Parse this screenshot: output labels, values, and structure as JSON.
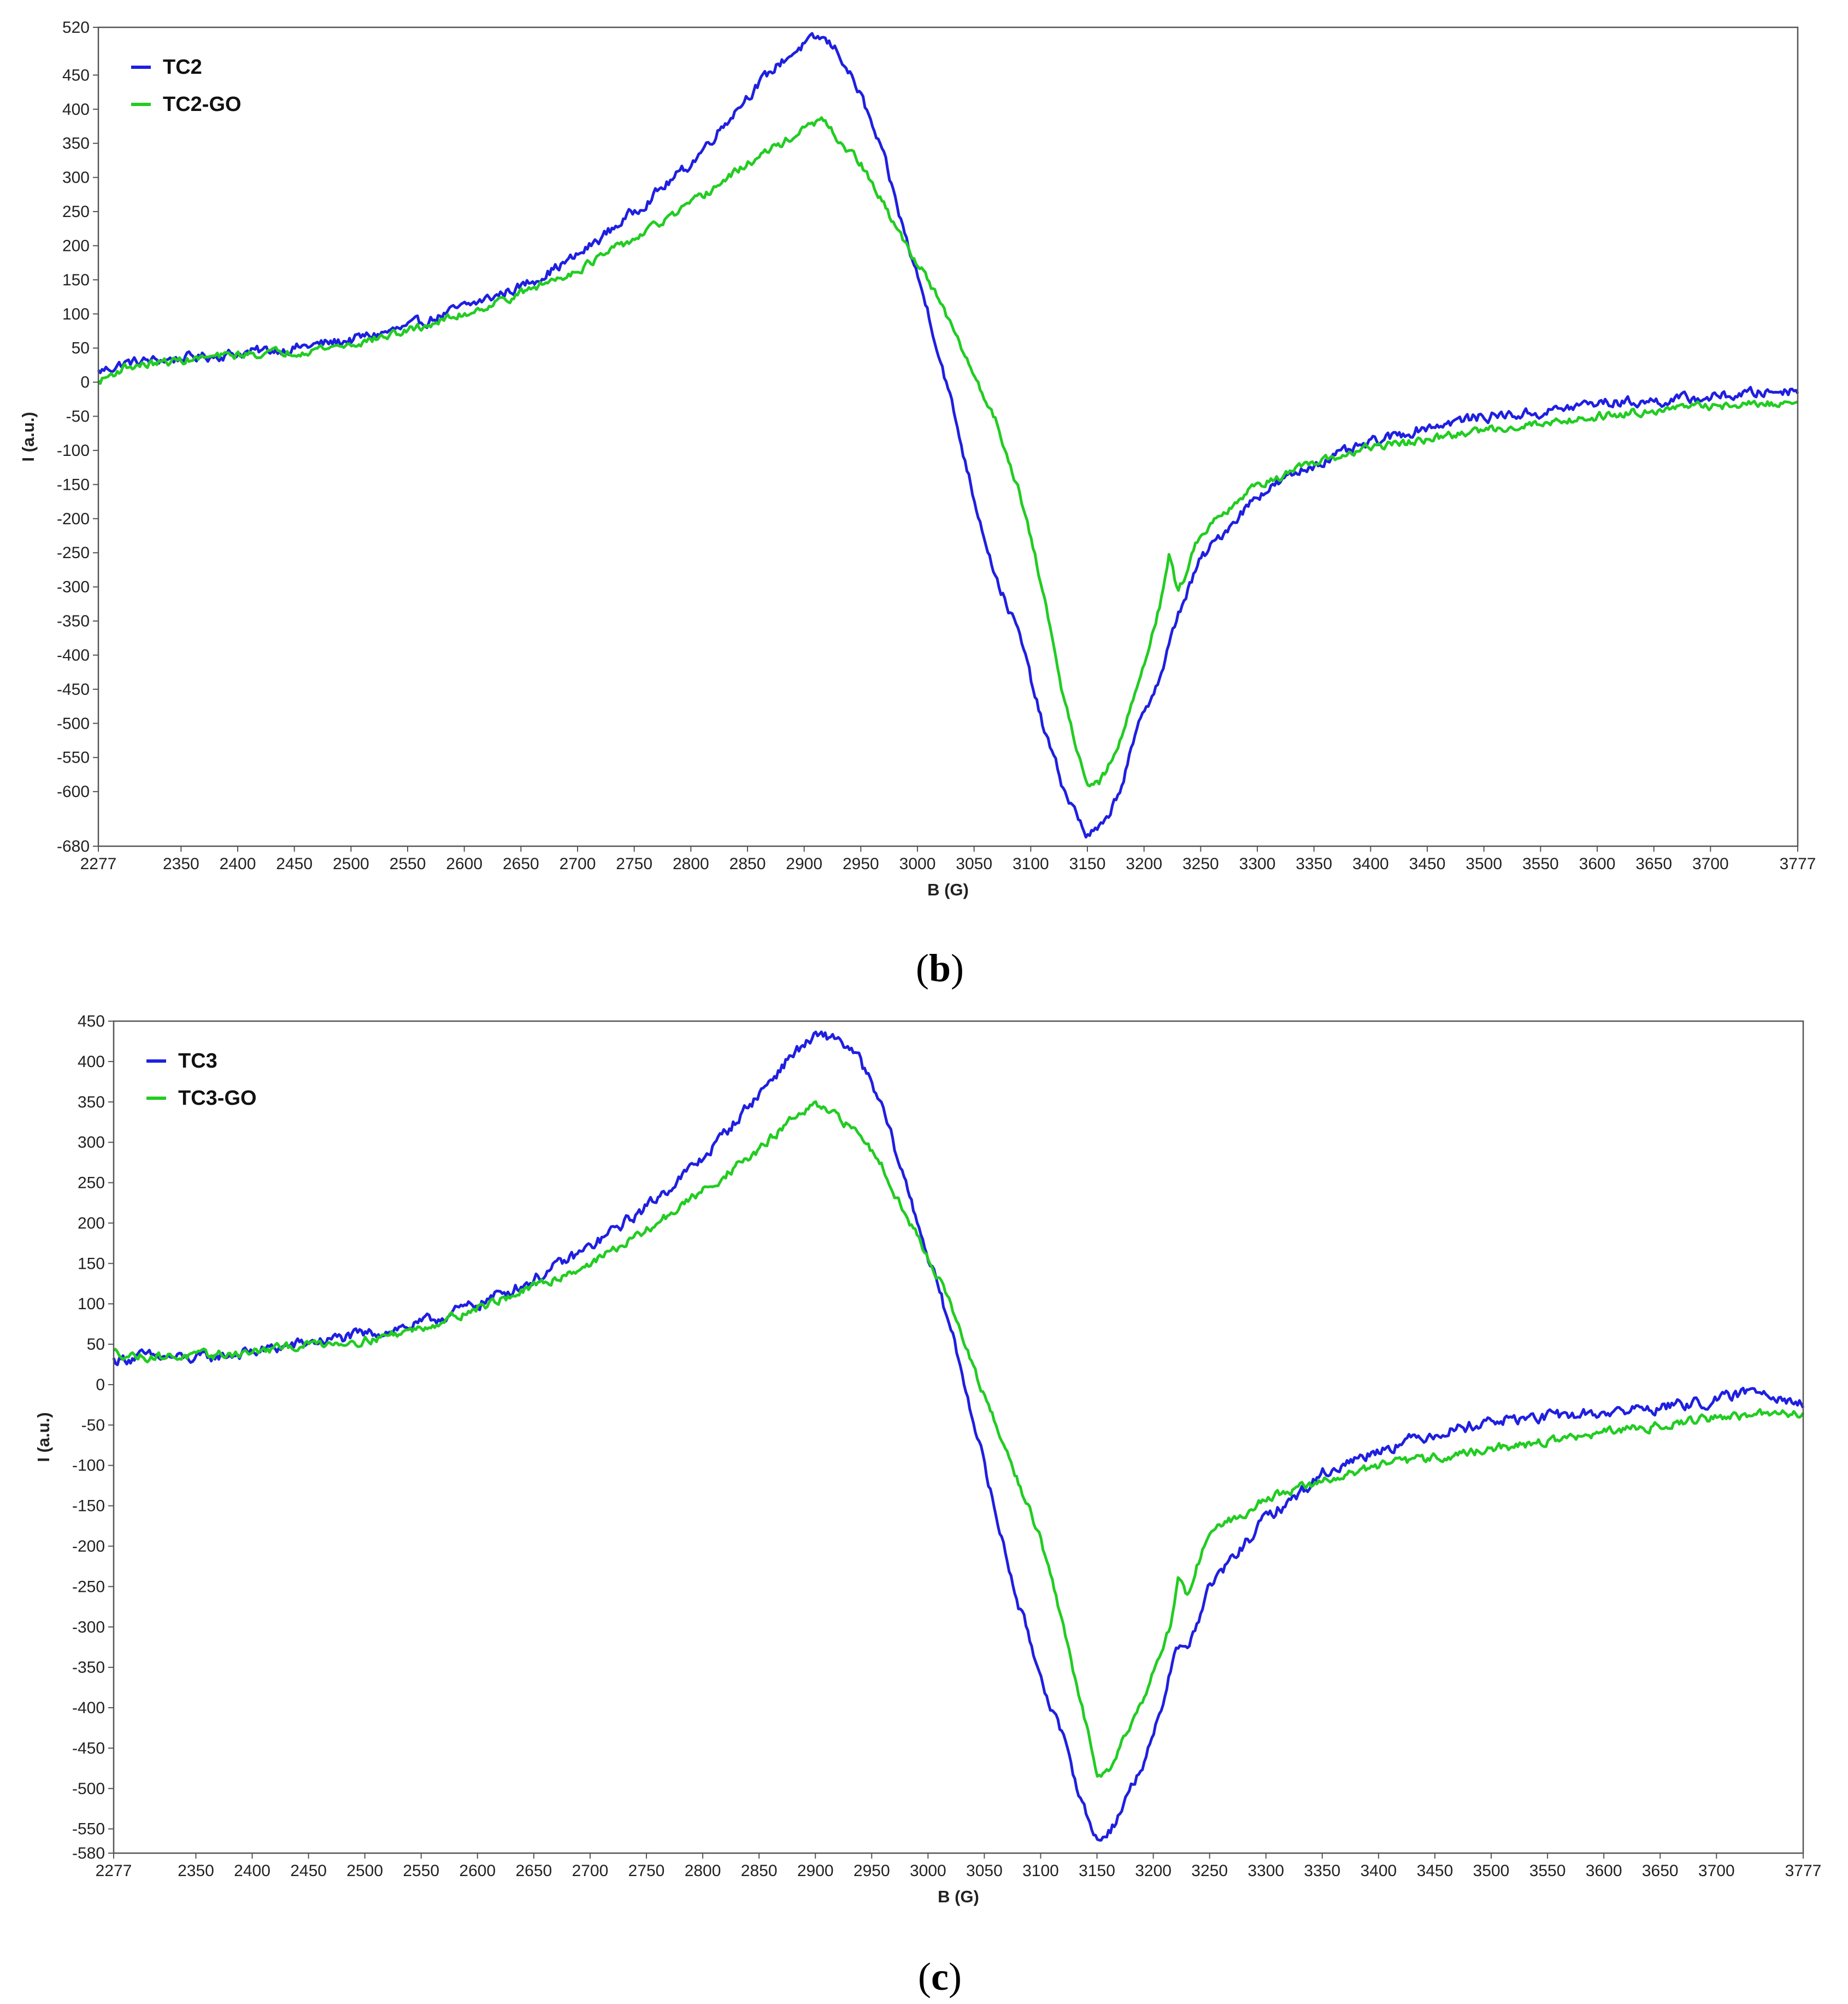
{
  "colors": {
    "tc": "#1f1fe0",
    "tc_go": "#22cc22",
    "frame": "#555555"
  },
  "chart_data": [
    {
      "type": "line",
      "caption_letter": "b",
      "xlabel": "B (G)",
      "ylabel": "I (a.u.)",
      "xlim": [
        2277,
        3777
      ],
      "ylim": [
        -680,
        520
      ],
      "xticks": [
        2277,
        2350,
        2400,
        2450,
        2500,
        2550,
        2600,
        2650,
        2700,
        2750,
        2800,
        2850,
        2900,
        2950,
        3000,
        3050,
        3100,
        3150,
        3200,
        3250,
        3300,
        3350,
        3400,
        3450,
        3500,
        3550,
        3600,
        3650,
        3700,
        3777
      ],
      "yticks": [
        520,
        450,
        400,
        350,
        300,
        250,
        200,
        150,
        100,
        50,
        0,
        -50,
        -100,
        -150,
        -200,
        -250,
        -300,
        -350,
        -400,
        -450,
        -500,
        -550,
        -600,
        -680
      ],
      "legend_position": "top-left",
      "series": [
        {
          "name": "TC2",
          "color_key": "tc",
          "noise": 14,
          "points": [
            [
              2277,
              15
            ],
            [
              2300,
              28
            ],
            [
              2350,
              35
            ],
            [
              2400,
              42
            ],
            [
              2450,
              50
            ],
            [
              2500,
              62
            ],
            [
              2550,
              80
            ],
            [
              2600,
              110
            ],
            [
              2650,
              140
            ],
            [
              2700,
              185
            ],
            [
              2750,
              250
            ],
            [
              2800,
              320
            ],
            [
              2850,
              420
            ],
            [
              2880,
              470
            ],
            [
              2900,
              495
            ],
            [
              2915,
              505
            ],
            [
              2930,
              485
            ],
            [
              2950,
              420
            ],
            [
              2970,
              330
            ],
            [
              2990,
              210
            ],
            [
              3010,
              100
            ],
            [
              3030,
              -30
            ],
            [
              3050,
              -170
            ],
            [
              3070,
              -290
            ],
            [
              3090,
              -370
            ],
            [
              3110,
              -500
            ],
            [
              3130,
              -600
            ],
            [
              3150,
              -665
            ],
            [
              3165,
              -650
            ],
            [
              3180,
              -590
            ],
            [
              3200,
              -480
            ],
            [
              3215,
              -430
            ],
            [
              3230,
              -340
            ],
            [
              3250,
              -260
            ],
            [
              3270,
              -220
            ],
            [
              3300,
              -165
            ],
            [
              3350,
              -120
            ],
            [
              3400,
              -90
            ],
            [
              3450,
              -65
            ],
            [
              3500,
              -50
            ],
            [
              3550,
              -45
            ],
            [
              3600,
              -30
            ],
            [
              3650,
              -28
            ],
            [
              3700,
              -22
            ],
            [
              3777,
              -10
            ]
          ]
        },
        {
          "name": "TC2-GO",
          "color_key": "tc_go",
          "noise": 11,
          "points": [
            [
              2277,
              0
            ],
            [
              2300,
              22
            ],
            [
              2350,
              32
            ],
            [
              2400,
              40
            ],
            [
              2450,
              45
            ],
            [
              2500,
              55
            ],
            [
              2550,
              75
            ],
            [
              2600,
              100
            ],
            [
              2650,
              130
            ],
            [
              2700,
              165
            ],
            [
              2750,
              210
            ],
            [
              2800,
              260
            ],
            [
              2850,
              320
            ],
            [
              2880,
              350
            ],
            [
              2900,
              370
            ],
            [
              2915,
              385
            ],
            [
              2930,
              355
            ],
            [
              2950,
              320
            ],
            [
              2970,
              260
            ],
            [
              2990,
              200
            ],
            [
              3010,
              150
            ],
            [
              3030,
              80
            ],
            [
              3050,
              10
            ],
            [
              3070,
              -60
            ],
            [
              3090,
              -160
            ],
            [
              3110,
              -300
            ],
            [
              3130,
              -470
            ],
            [
              3150,
              -590
            ],
            [
              3160,
              -590
            ],
            [
              3175,
              -545
            ],
            [
              3190,
              -470
            ],
            [
              3205,
              -380
            ],
            [
              3215,
              -320
            ],
            [
              3222,
              -255
            ],
            [
              3230,
              -310
            ],
            [
              3250,
              -220
            ],
            [
              3270,
              -190
            ],
            [
              3300,
              -150
            ],
            [
              3350,
              -120
            ],
            [
              3400,
              -95
            ],
            [
              3450,
              -85
            ],
            [
              3500,
              -70
            ],
            [
              3550,
              -60
            ],
            [
              3600,
              -50
            ],
            [
              3650,
              -40
            ],
            [
              3700,
              -35
            ],
            [
              3777,
              -30
            ]
          ]
        }
      ]
    },
    {
      "type": "line",
      "caption_letter": "c",
      "xlabel": "B (G)",
      "ylabel": "I (a.u.)",
      "xlim": [
        2277,
        3777
      ],
      "ylim": [
        -580,
        450
      ],
      "xticks": [
        2277,
        2350,
        2400,
        2450,
        2500,
        2550,
        2600,
        2650,
        2700,
        2750,
        2800,
        2850,
        2900,
        2950,
        3000,
        3050,
        3100,
        3150,
        3200,
        3250,
        3300,
        3350,
        3400,
        3450,
        3500,
        3550,
        3600,
        3650,
        3700,
        3777
      ],
      "yticks": [
        450,
        400,
        350,
        300,
        250,
        200,
        150,
        100,
        50,
        0,
        -50,
        -100,
        -150,
        -200,
        -250,
        -300,
        -350,
        -400,
        -450,
        -500,
        -550,
        -580
      ],
      "legend_position": "top-left",
      "series": [
        {
          "name": "TC3",
          "color_key": "tc",
          "noise": 13,
          "points": [
            [
              2277,
              30
            ],
            [
              2300,
              35
            ],
            [
              2350,
              32
            ],
            [
              2400,
              40
            ],
            [
              2450,
              52
            ],
            [
              2500,
              62
            ],
            [
              2550,
              75
            ],
            [
              2600,
              100
            ],
            [
              2650,
              130
            ],
            [
              2700,
              170
            ],
            [
              2750,
              220
            ],
            [
              2800,
              280
            ],
            [
              2850,
              360
            ],
            [
              2880,
              410
            ],
            [
              2900,
              430
            ],
            [
              2920,
              430
            ],
            [
              2940,
              400
            ],
            [
              2960,
              340
            ],
            [
              2980,
              250
            ],
            [
              3000,
              160
            ],
            [
              3020,
              70
            ],
            [
              3040,
              -40
            ],
            [
              3060,
              -160
            ],
            [
              3080,
              -270
            ],
            [
              3100,
              -360
            ],
            [
              3120,
              -440
            ],
            [
              3140,
              -530
            ],
            [
              3150,
              -565
            ],
            [
              3165,
              -545
            ],
            [
              3180,
              -500
            ],
            [
              3200,
              -440
            ],
            [
              3210,
              -385
            ],
            [
              3220,
              -320
            ],
            [
              3230,
              -330
            ],
            [
              3250,
              -250
            ],
            [
              3280,
              -200
            ],
            [
              3300,
              -165
            ],
            [
              3330,
              -135
            ],
            [
              3350,
              -110
            ],
            [
              3400,
              -80
            ],
            [
              3450,
              -60
            ],
            [
              3500,
              -45
            ],
            [
              3550,
              -40
            ],
            [
              3600,
              -35
            ],
            [
              3650,
              -28
            ],
            [
              3700,
              -20
            ],
            [
              3740,
              -5
            ],
            [
              3777,
              -25
            ]
          ]
        },
        {
          "name": "TC3-GO",
          "color_key": "tc_go",
          "noise": 10,
          "points": [
            [
              2277,
              40
            ],
            [
              2300,
              35
            ],
            [
              2350,
              35
            ],
            [
              2400,
              40
            ],
            [
              2450,
              50
            ],
            [
              2500,
              55
            ],
            [
              2550,
              70
            ],
            [
              2600,
              95
            ],
            [
              2650,
              120
            ],
            [
              2700,
              150
            ],
            [
              2750,
              190
            ],
            [
              2800,
              240
            ],
            [
              2850,
              290
            ],
            [
              2880,
              330
            ],
            [
              2900,
              345
            ],
            [
              2920,
              330
            ],
            [
              2940,
              310
            ],
            [
              2960,
              270
            ],
            [
              2980,
              210
            ],
            [
              3000,
              160
            ],
            [
              3020,
              100
            ],
            [
              3040,
              20
            ],
            [
              3060,
              -50
            ],
            [
              3080,
              -120
            ],
            [
              3100,
              -190
            ],
            [
              3120,
              -300
            ],
            [
              3140,
              -420
            ],
            [
              3150,
              -480
            ],
            [
              3160,
              -475
            ],
            [
              3175,
              -435
            ],
            [
              3190,
              -390
            ],
            [
              3205,
              -340
            ],
            [
              3215,
              -300
            ],
            [
              3222,
              -240
            ],
            [
              3230,
              -260
            ],
            [
              3250,
              -180
            ],
            [
              3280,
              -160
            ],
            [
              3300,
              -140
            ],
            [
              3350,
              -120
            ],
            [
              3400,
              -100
            ],
            [
              3450,
              -90
            ],
            [
              3500,
              -80
            ],
            [
              3550,
              -70
            ],
            [
              3600,
              -60
            ],
            [
              3650,
              -50
            ],
            [
              3700,
              -40
            ],
            [
              3777,
              -35
            ]
          ]
        }
      ]
    }
  ]
}
